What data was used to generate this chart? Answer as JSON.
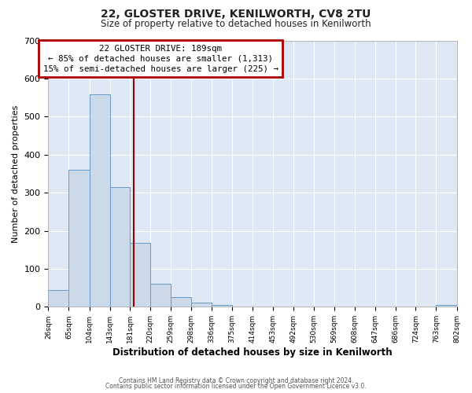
{
  "title_line1": "22, GLOSTER DRIVE, KENILWORTH, CV8 2TU",
  "title_line2": "Size of property relative to detached houses in Kenilworth",
  "xlabel": "Distribution of detached houses by size in Kenilworth",
  "ylabel": "Number of detached properties",
  "bin_edges": [
    26,
    65,
    104,
    143,
    181,
    220,
    259,
    298,
    336,
    375,
    414,
    453,
    492,
    530,
    569,
    608,
    647,
    686,
    724,
    763,
    802
  ],
  "bar_heights": [
    44,
    360,
    558,
    315,
    168,
    60,
    25,
    12,
    4,
    0,
    0,
    0,
    0,
    0,
    0,
    0,
    0,
    0,
    0,
    4
  ],
  "bar_color": "#ccd9e8",
  "bar_edge_color": "#6699cc",
  "vline_x": 189,
  "vline_color": "#990000",
  "ylim": [
    0,
    700
  ],
  "yticks": [
    0,
    100,
    200,
    300,
    400,
    500,
    600,
    700
  ],
  "annotation_title": "22 GLOSTER DRIVE: 189sqm",
  "annotation_line1": "← 85% of detached houses are smaller (1,313)",
  "annotation_line2": "15% of semi-detached houses are larger (225) →",
  "annotation_box_color": "#aa0000",
  "footer_line1": "Contains HM Land Registry data © Crown copyright and database right 2024.",
  "footer_line2": "Contains public sector information licensed under the Open Government Licence v3.0.",
  "plot_bg_color": "#dde8f4",
  "grid_color": "#ffffff",
  "tick_labels": [
    "26sqm",
    "65sqm",
    "104sqm",
    "143sqm",
    "181sqm",
    "220sqm",
    "259sqm",
    "298sqm",
    "336sqm",
    "375sqm",
    "414sqm",
    "453sqm",
    "492sqm",
    "530sqm",
    "569sqm",
    "608sqm",
    "647sqm",
    "686sqm",
    "724sqm",
    "763sqm",
    "802sqm"
  ]
}
